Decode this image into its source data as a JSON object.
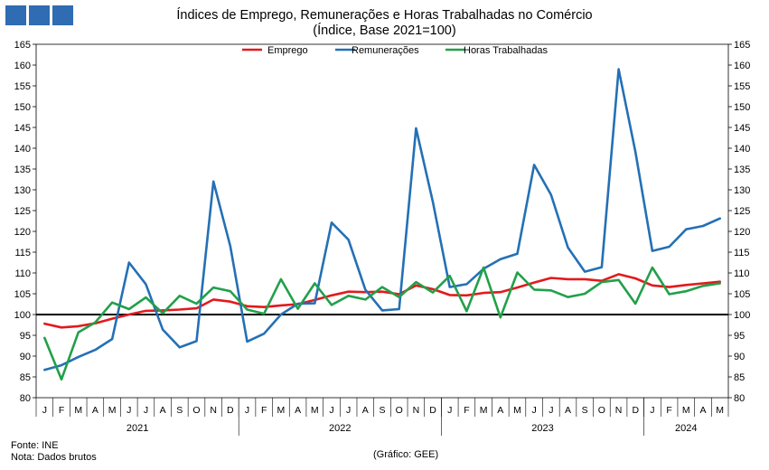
{
  "header": {
    "title": "Índices de Emprego, Remunerações e Horas Trabalhadas no Comércio",
    "subtitle": "(Índice, Base 2021=100)"
  },
  "footer": {
    "source": "Fonte: INE",
    "note": "Nota: Dados brutos",
    "credit": "(Gráfico: GEE)"
  },
  "chart_data": {
    "type": "line",
    "title": "Índices de Emprego, Remunerações e Horas Trabalhadas no Comércio",
    "subtitle": "(Índice, Base 2021=100)",
    "ylim": [
      80,
      165
    ],
    "ytick_step": 5,
    "y_axes": "left-and-right",
    "legend_position": "top-center",
    "grid": false,
    "reference_line": 100,
    "month_labels": [
      "J",
      "F",
      "M",
      "A",
      "M",
      "J",
      "J",
      "A",
      "S",
      "O",
      "N",
      "D",
      "J",
      "F",
      "M",
      "A",
      "M",
      "J",
      "J",
      "A",
      "S",
      "O",
      "N",
      "D",
      "J",
      "F",
      "M",
      "A",
      "M",
      "J",
      "J",
      "A",
      "S",
      "O",
      "N",
      "D",
      "J",
      "F",
      "M",
      "A",
      "M"
    ],
    "years": [
      {
        "label": "2021",
        "months": 12
      },
      {
        "label": "2022",
        "months": 12
      },
      {
        "label": "2023",
        "months": 12
      },
      {
        "label": "2024",
        "months": 5
      }
    ],
    "series": [
      {
        "name": "Emprego",
        "color": "#e3191c",
        "values": [
          97.8,
          96.9,
          97.2,
          97.9,
          99.0,
          100.0,
          100.9,
          101.0,
          101.2,
          101.5,
          103.6,
          103.1,
          102.0,
          101.8,
          102.2,
          102.5,
          103.5,
          104.6,
          105.5,
          105.4,
          105.5,
          104.9,
          107.0,
          106.1,
          104.7,
          104.6,
          105.2,
          105.4,
          106.5,
          107.7,
          108.8,
          108.5,
          108.5,
          108.1,
          109.7,
          108.7,
          107.0,
          106.6,
          107.1,
          107.5,
          107.9
        ]
      },
      {
        "name": "Remunerações",
        "color": "#2470b5",
        "values": [
          86.7,
          87.8,
          89.8,
          91.5,
          94.1,
          112.5,
          107.3,
          96.4,
          92.1,
          93.6,
          132.0,
          116.4,
          93.5,
          95.4,
          100.0,
          102.6,
          102.7,
          122.1,
          118.0,
          106.0,
          101.0,
          101.3,
          144.8,
          127.1,
          106.6,
          107.3,
          111.0,
          113.3,
          114.6,
          136.0,
          128.8,
          116.1,
          110.3,
          111.4,
          159.0,
          139.1,
          115.3,
          116.3,
          120.5,
          121.3,
          123.1
        ]
      },
      {
        "name": "Horas Trabalhadas",
        "color": "#22a04a",
        "values": [
          94.4,
          84.4,
          95.7,
          98.1,
          102.9,
          101.3,
          104.1,
          100.3,
          104.5,
          102.6,
          106.5,
          105.6,
          101.2,
          100.2,
          108.5,
          101.4,
          107.5,
          102.3,
          104.5,
          103.6,
          106.6,
          104.2,
          107.8,
          105.3,
          109.3,
          100.8,
          111.3,
          99.3,
          110.1,
          106.0,
          105.8,
          104.2,
          105.0,
          107.8,
          108.3,
          102.6,
          111.3,
          104.9,
          105.6,
          106.9,
          107.5
        ]
      }
    ]
  }
}
